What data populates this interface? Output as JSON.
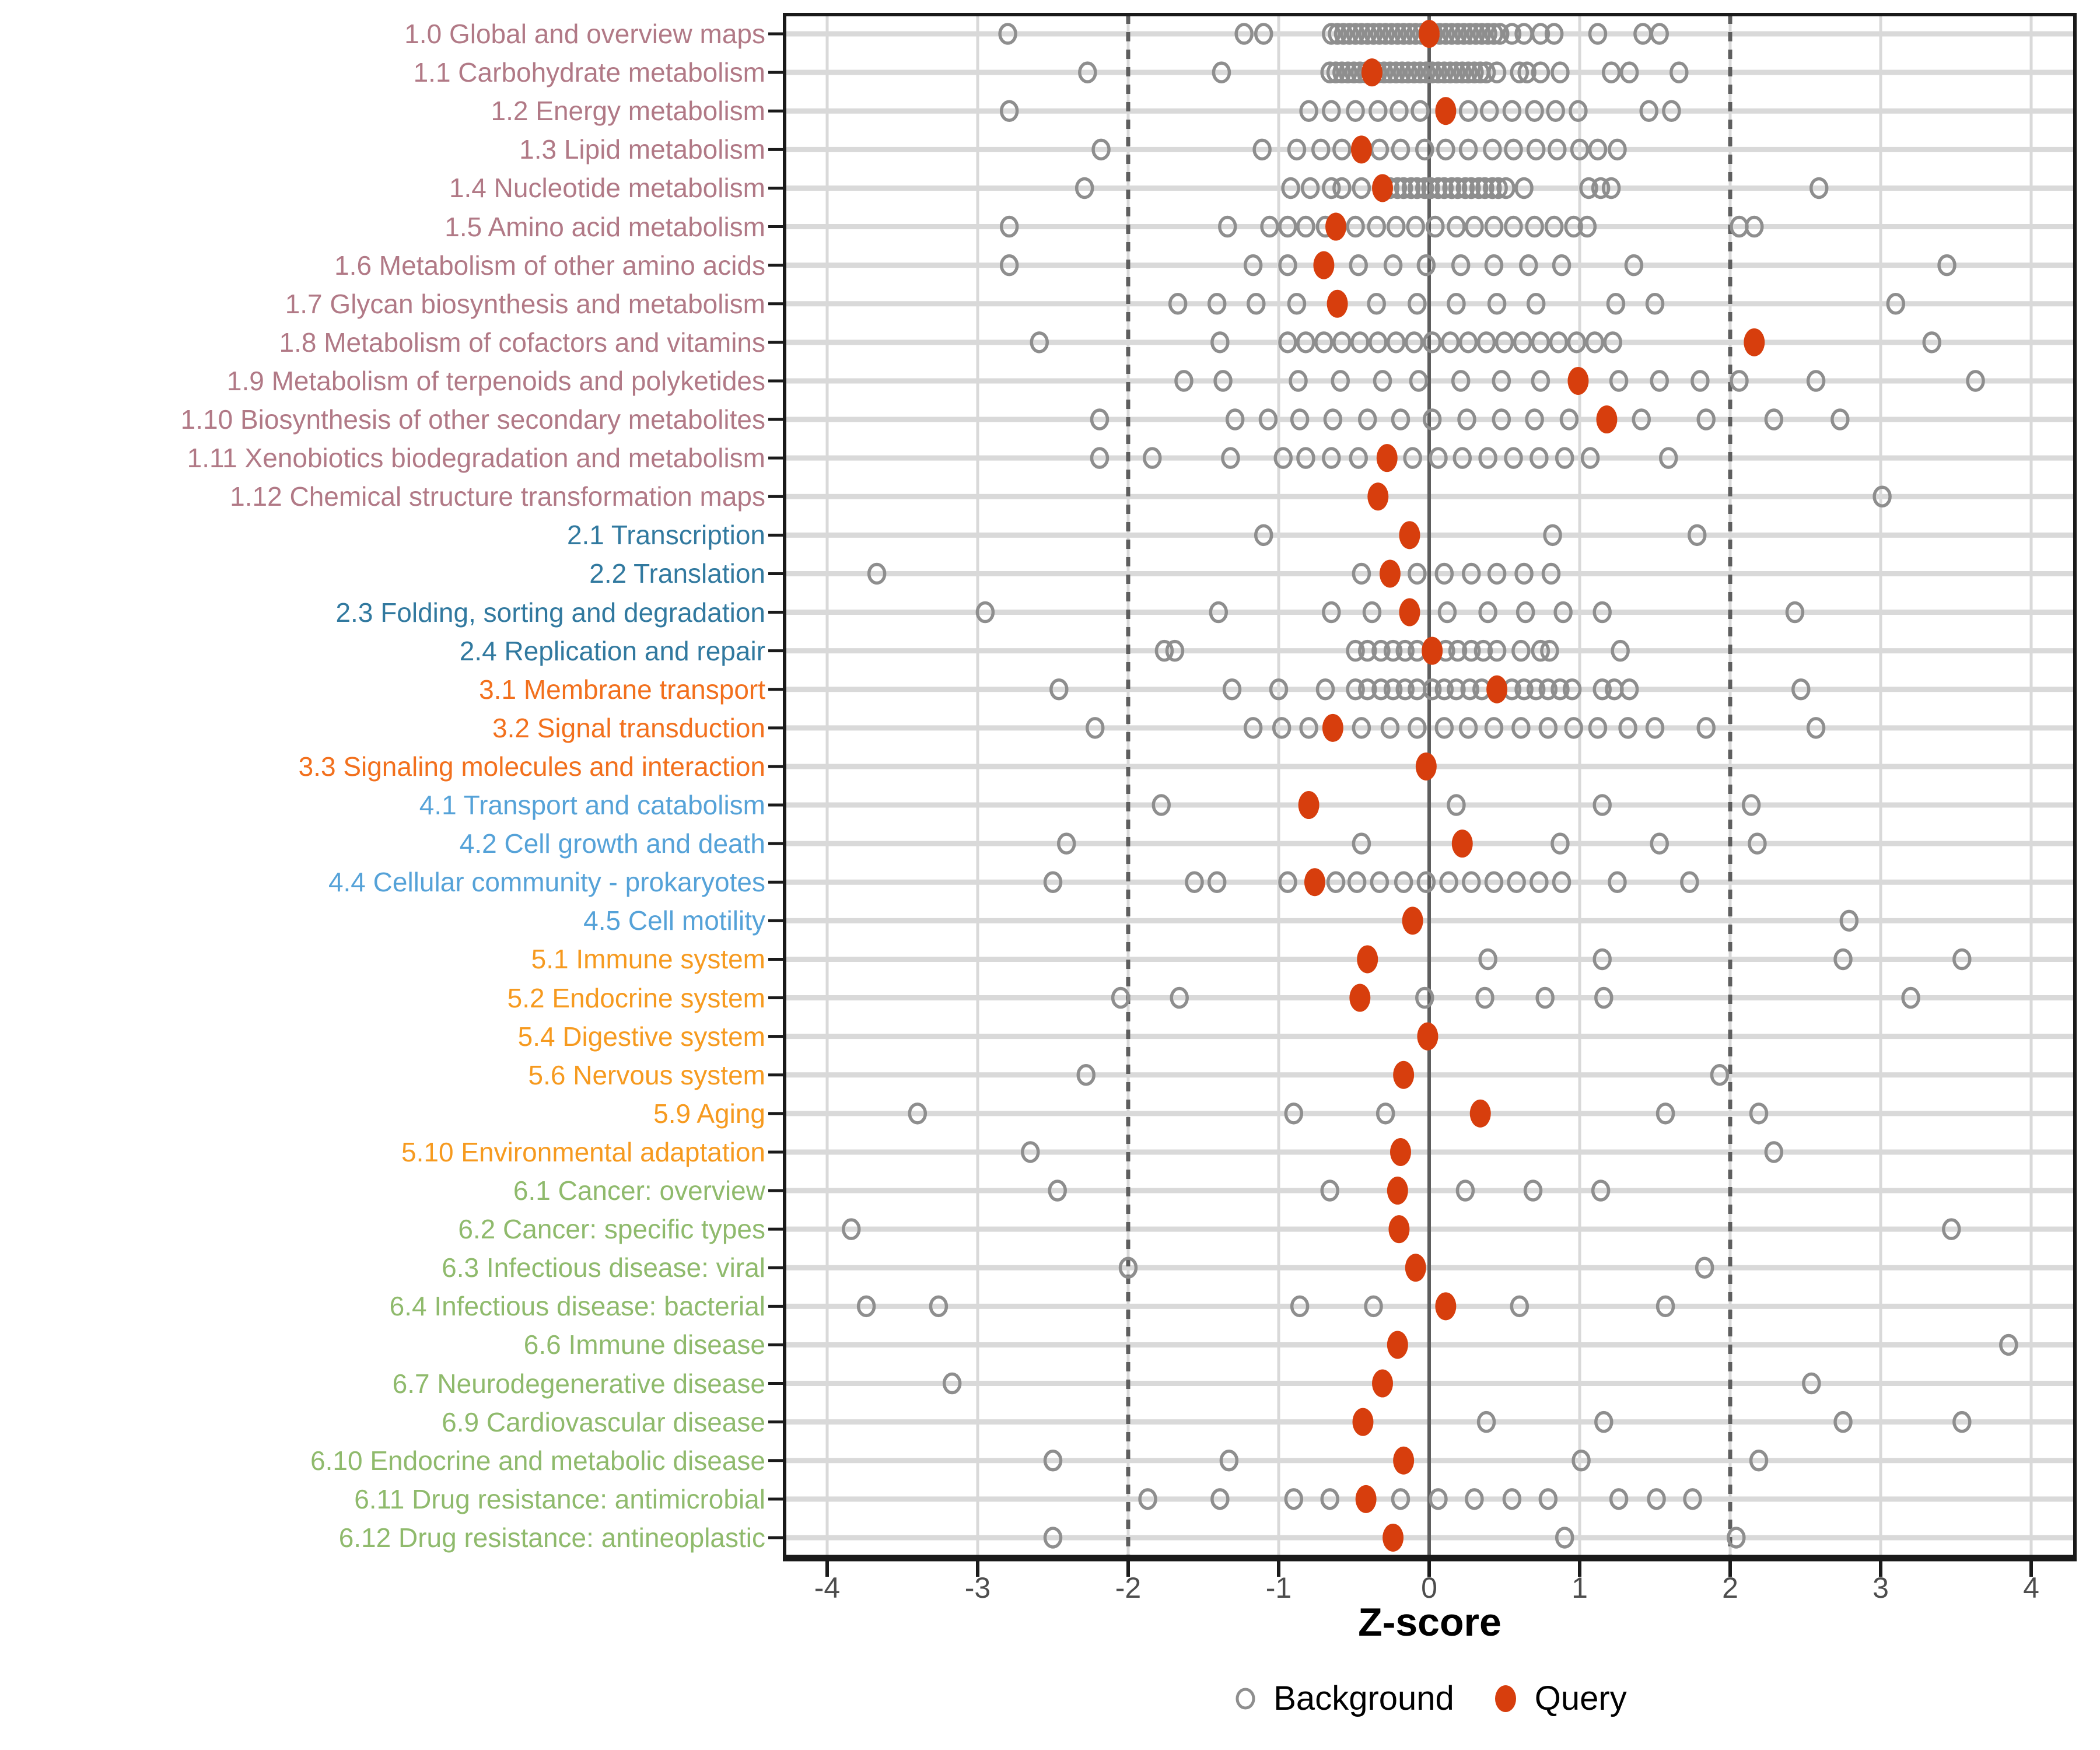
{
  "chart_data": {
    "type": "scatter",
    "title": "",
    "xlabel": "Z-score",
    "x_ticks": [
      -4,
      -3,
      -2,
      -1,
      0,
      1,
      2,
      3,
      4
    ],
    "xlim": [
      -4.28,
      4.28
    ],
    "grid": "on",
    "reference_lines": {
      "solid_at": 0,
      "dashed_at": [
        -2,
        2
      ]
    },
    "legend_position": "bottom-center",
    "legend": [
      {
        "label": "Background",
        "marker": "open-circle",
        "color": "#8E8E8E"
      },
      {
        "label": "Query",
        "marker": "filled-ellipse",
        "color": "#D73E0D"
      }
    ],
    "group_colors": {
      "1": "#B17986",
      "2": "#31799F",
      "3": "#F2701D",
      "4": "#55A2D8",
      "5": "#F69A1F",
      "6": "#8FBA6C"
    },
    "categories": [
      {
        "label": "1.0 Global and overview maps",
        "group": "1",
        "query": 0.0,
        "background": [
          -2.8,
          -1.23,
          -1.1,
          -0.65,
          -0.61,
          -0.57,
          -0.53,
          -0.49,
          -0.45,
          -0.41,
          -0.37,
          -0.33,
          -0.29,
          -0.25,
          -0.21,
          -0.17,
          -0.13,
          -0.09,
          -0.05,
          -0.01,
          0.03,
          0.07,
          0.11,
          0.15,
          0.19,
          0.23,
          0.27,
          0.31,
          0.35,
          0.39,
          0.43,
          0.47,
          0.55,
          0.63,
          0.74,
          0.83,
          1.12,
          1.42,
          1.53
        ]
      },
      {
        "label": "1.1 Carbohydrate metabolism",
        "group": "1",
        "query": -0.38,
        "background": [
          -2.27,
          -1.38,
          -0.66,
          -0.62,
          -0.58,
          -0.54,
          -0.5,
          -0.46,
          -0.42,
          -0.34,
          -0.3,
          -0.26,
          -0.22,
          -0.18,
          -0.14,
          -0.1,
          -0.06,
          -0.02,
          0.02,
          0.06,
          0.1,
          0.14,
          0.18,
          0.22,
          0.26,
          0.3,
          0.34,
          0.38,
          0.45,
          0.6,
          0.65,
          0.74,
          0.87,
          1.21,
          1.33,
          1.66
        ]
      },
      {
        "label": "1.2 Energy metabolism",
        "group": "1",
        "query": 0.11,
        "background": [
          -2.79,
          -0.8,
          -0.65,
          -0.49,
          -0.34,
          -0.2,
          -0.06,
          0.26,
          0.4,
          0.55,
          0.7,
          0.84,
          0.99,
          1.46,
          1.61
        ]
      },
      {
        "label": "1.3 Lipid metabolism",
        "group": "1",
        "query": -0.45,
        "background": [
          -2.18,
          -1.11,
          -0.88,
          -0.72,
          -0.58,
          -0.33,
          -0.19,
          -0.03,
          0.11,
          0.26,
          0.42,
          0.56,
          0.71,
          0.85,
          1.0,
          1.12,
          1.25
        ]
      },
      {
        "label": "1.4 Nucleotide metabolism",
        "group": "1",
        "query": -0.31,
        "background": [
          -2.29,
          -0.92,
          -0.79,
          -0.65,
          -0.58,
          -0.45,
          -0.26,
          -0.21,
          -0.17,
          -0.12,
          -0.08,
          -0.03,
          0.01,
          0.06,
          0.1,
          0.15,
          0.19,
          0.24,
          0.28,
          0.33,
          0.37,
          0.42,
          0.46,
          0.51,
          0.63,
          1.06,
          1.14,
          1.21,
          2.59
        ]
      },
      {
        "label": "1.5 Amino acid metabolism",
        "group": "1",
        "query": -0.62,
        "background": [
          -2.79,
          -1.34,
          -1.06,
          -0.94,
          -0.82,
          -0.69,
          -0.49,
          -0.35,
          -0.22,
          -0.09,
          0.04,
          0.18,
          0.3,
          0.43,
          0.56,
          0.7,
          0.83,
          0.96,
          1.05,
          2.06,
          2.16
        ]
      },
      {
        "label": "1.6 Metabolism of other amino acids",
        "group": "1",
        "query": -0.7,
        "background": [
          -2.79,
          -1.17,
          -0.94,
          -0.47,
          -0.24,
          -0.02,
          0.21,
          0.43,
          0.66,
          0.88,
          1.36,
          3.44
        ]
      },
      {
        "label": "1.7 Glycan biosynthesis and metabolism",
        "group": "1",
        "query": -0.61,
        "background": [
          -1.67,
          -1.41,
          -1.15,
          -0.88,
          -0.35,
          -0.08,
          0.18,
          0.45,
          0.71,
          1.24,
          1.5,
          3.1
        ]
      },
      {
        "label": "1.8 Metabolism of cofactors and vitamins",
        "group": "1",
        "query": 2.16,
        "background": [
          -2.59,
          -1.39,
          -0.94,
          -0.82,
          -0.7,
          -0.58,
          -0.46,
          -0.34,
          -0.22,
          -0.1,
          0.02,
          0.14,
          0.26,
          0.38,
          0.5,
          0.62,
          0.74,
          0.86,
          0.98,
          1.1,
          1.22,
          3.34
        ]
      },
      {
        "label": "1.9 Metabolism of terpenoids and polyketides",
        "group": "1",
        "query": 0.99,
        "background": [
          -1.63,
          -1.37,
          -0.87,
          -0.59,
          -0.31,
          -0.07,
          0.21,
          0.48,
          0.74,
          1.26,
          1.53,
          1.8,
          2.06,
          2.57,
          3.63
        ]
      },
      {
        "label": "1.10 Biosynthesis of other secondary metabolites",
        "group": "1",
        "query": 1.18,
        "background": [
          -2.19,
          -1.29,
          -1.07,
          -0.86,
          -0.64,
          -0.41,
          -0.19,
          0.02,
          0.25,
          0.48,
          0.7,
          0.93,
          1.41,
          1.84,
          2.29,
          2.73
        ]
      },
      {
        "label": "1.11 Xenobiotics biodegradation and metabolism",
        "group": "1",
        "query": -0.28,
        "background": [
          -2.19,
          -1.84,
          -1.32,
          -0.97,
          -0.82,
          -0.65,
          -0.47,
          -0.11,
          0.06,
          0.22,
          0.39,
          0.56,
          0.73,
          0.9,
          1.07,
          1.59
        ]
      },
      {
        "label": "1.12 Chemical structure transformation maps",
        "group": "1",
        "query": -0.34,
        "background": [
          3.01
        ]
      },
      {
        "label": "2.1 Transcription",
        "group": "2",
        "query": -0.13,
        "background": [
          -1.1,
          0.82,
          1.78
        ]
      },
      {
        "label": "2.2 Translation",
        "group": "2",
        "query": -0.26,
        "background": [
          -3.67,
          -0.45,
          -0.08,
          0.1,
          0.28,
          0.45,
          0.63,
          0.81
        ]
      },
      {
        "label": "2.3 Folding, sorting and degradation",
        "group": "2",
        "query": -0.13,
        "background": [
          -2.95,
          -1.4,
          -0.65,
          -0.38,
          0.12,
          0.39,
          0.64,
          0.89,
          1.15,
          2.43
        ]
      },
      {
        "label": "2.4 Replication and repair",
        "group": "2",
        "query": 0.02,
        "background": [
          -1.76,
          -1.69,
          -0.49,
          -0.41,
          -0.32,
          -0.24,
          -0.16,
          -0.08,
          0.11,
          0.19,
          0.28,
          0.36,
          0.45,
          0.61,
          0.74,
          0.8,
          1.27
        ]
      },
      {
        "label": "3.1 Membrane transport",
        "group": "3",
        "query": 0.45,
        "background": [
          -2.46,
          -1.31,
          -1.0,
          -0.69,
          -0.49,
          -0.41,
          -0.32,
          -0.24,
          -0.16,
          -0.08,
          0.02,
          0.1,
          0.18,
          0.27,
          0.35,
          0.55,
          0.63,
          0.71,
          0.79,
          0.87,
          0.95,
          1.15,
          1.23,
          1.33,
          2.47
        ]
      },
      {
        "label": "3.2 Signal transduction",
        "group": "3",
        "query": -0.64,
        "background": [
          -2.22,
          -1.17,
          -0.98,
          -0.8,
          -0.45,
          -0.26,
          -0.08,
          0.1,
          0.26,
          0.43,
          0.61,
          0.79,
          0.96,
          1.12,
          1.32,
          1.5,
          1.84,
          2.57
        ]
      },
      {
        "label": "3.3 Signaling molecules and interaction",
        "group": "3",
        "query": -0.02,
        "background": []
      },
      {
        "label": "4.1 Transport and catabolism",
        "group": "4",
        "query": -0.8,
        "background": [
          -1.78,
          0.18,
          1.15,
          2.14
        ]
      },
      {
        "label": "4.2 Cell growth and death",
        "group": "4",
        "query": 0.22,
        "background": [
          -2.41,
          -0.45,
          0.87,
          1.53,
          2.18
        ]
      },
      {
        "label": "4.4 Cellular community - prokaryotes",
        "group": "4",
        "query": -0.76,
        "background": [
          -2.5,
          -1.56,
          -1.41,
          -0.94,
          -0.62,
          -0.48,
          -0.33,
          -0.17,
          -0.02,
          0.13,
          0.28,
          0.43,
          0.58,
          0.73,
          0.88,
          1.25,
          1.73
        ]
      },
      {
        "label": "4.5 Cell motility",
        "group": "4",
        "query": -0.11,
        "background": [
          2.79
        ]
      },
      {
        "label": "5.1 Immune system",
        "group": "5",
        "query": -0.41,
        "background": [
          0.39,
          1.15,
          2.75,
          3.54
        ]
      },
      {
        "label": "5.2 Endocrine system",
        "group": "5",
        "query": -0.46,
        "background": [
          -2.05,
          -1.66,
          -0.03,
          0.37,
          0.77,
          1.16,
          3.2
        ]
      },
      {
        "label": "5.4 Digestive system",
        "group": "5",
        "query": -0.01,
        "background": []
      },
      {
        "label": "5.6 Nervous system",
        "group": "5",
        "query": -0.17,
        "background": [
          -2.28,
          1.93
        ]
      },
      {
        "label": "5.9 Aging",
        "group": "5",
        "query": 0.34,
        "background": [
          -3.4,
          -0.9,
          -0.29,
          1.57,
          2.19
        ]
      },
      {
        "label": "5.10 Environmental adaptation",
        "group": "5",
        "query": -0.19,
        "background": [
          -2.65,
          2.29
        ]
      },
      {
        "label": "6.1 Cancer: overview",
        "group": "6",
        "query": -0.21,
        "background": [
          -2.47,
          -0.66,
          0.24,
          0.69,
          1.14
        ]
      },
      {
        "label": "6.2 Cancer: specific types",
        "group": "6",
        "query": -0.2,
        "background": [
          -3.84,
          3.47
        ]
      },
      {
        "label": "6.3 Infectious disease: viral",
        "group": "6",
        "query": -0.09,
        "background": [
          -2.0,
          1.83
        ]
      },
      {
        "label": "6.4 Infectious disease: bacterial",
        "group": "6",
        "query": 0.11,
        "background": [
          -3.74,
          -3.26,
          -0.86,
          -0.37,
          0.6,
          1.57
        ]
      },
      {
        "label": "6.6 Immune disease",
        "group": "6",
        "query": -0.21,
        "background": [
          3.85
        ]
      },
      {
        "label": "6.7 Neurodegenerative disease",
        "group": "6",
        "query": -0.31,
        "background": [
          -3.17,
          2.54
        ]
      },
      {
        "label": "6.9 Cardiovascular disease",
        "group": "6",
        "query": -0.44,
        "background": [
          0.38,
          1.16,
          2.75,
          3.54
        ]
      },
      {
        "label": "6.10 Endocrine and metabolic disease",
        "group": "6",
        "query": -0.17,
        "background": [
          -2.5,
          -1.33,
          1.01,
          2.19
        ]
      },
      {
        "label": "6.11 Drug resistance: antimicrobial",
        "group": "6",
        "query": -0.42,
        "background": [
          -1.87,
          -1.39,
          -0.9,
          -0.66,
          -0.19,
          0.06,
          0.3,
          0.55,
          0.79,
          1.26,
          1.51,
          1.75
        ]
      },
      {
        "label": "6.12 Drug resistance: antineoplastic",
        "group": "6",
        "query": -0.24,
        "background": [
          -2.5,
          0.9,
          2.04
        ]
      }
    ],
    "style_colors": {
      "background_marker": "#8E8E8E",
      "query_marker": "#D73E0D",
      "grid_light": "#D9D9D9",
      "reference_dark": "#5E5E5E",
      "axis_text": "#4D4D4D",
      "panel_border": "#1A1A1A"
    }
  }
}
